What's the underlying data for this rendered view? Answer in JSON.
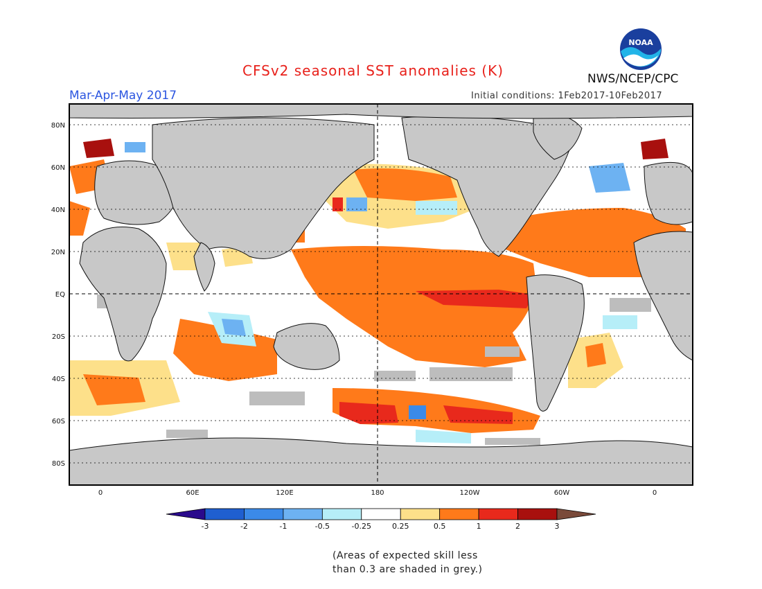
{
  "header": {
    "title": "CFSv2 seasonal SST anomalies (K)",
    "season": "Mar-Apr-May 2017",
    "initial_conditions": "Initial conditions: 1Feb2017-10Feb2017",
    "agency": "NWS/NCEP/CPC",
    "logo_text": "NOAA"
  },
  "map": {
    "lat_labels": [
      "80N",
      "60N",
      "40N",
      "20N",
      "EQ",
      "20S",
      "40S",
      "60S",
      "80S"
    ],
    "lon_labels": [
      "0",
      "60E",
      "120E",
      "180",
      "120W",
      "60W",
      "0"
    ],
    "land_color": "#c8c8c8",
    "skill_mask_color": "#bdbdbd"
  },
  "colorbar": {
    "tick_labels": [
      "-3",
      "-2",
      "-1",
      "-0.5",
      "-0.25",
      "0.25",
      "0.5",
      "1",
      "2",
      "3"
    ],
    "colors": [
      "#2a0a8c",
      "#1f5fd0",
      "#3b8ae8",
      "#6db2f2",
      "#b6eef8",
      "#ffffff",
      "#fde08a",
      "#ff7a1a",
      "#e8291c",
      "#a8100e",
      "#7a4a3a"
    ]
  },
  "footnote": {
    "line1": "(Areas of expected skill less",
    "line2": "than 0.3 are shaded in grey.)"
  }
}
